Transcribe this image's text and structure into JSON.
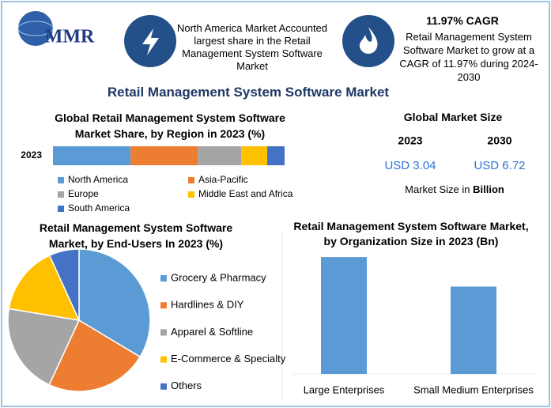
{
  "header": {
    "logo": "MMR",
    "card1": "North America Market Accounted largest share in the Retail Management System Software Market",
    "card2_title": "11.97% CAGR",
    "card2": "Retail Management System Software Market to grow at a CAGR of 11.97% during 2024-2030"
  },
  "title": "Retail Management System Software Market",
  "market_size": {
    "title": "Global Market Size",
    "years": [
      "2023",
      "2030"
    ],
    "values": [
      3.04,
      6.72
    ],
    "value_labels": [
      "USD 3.04",
      "USD 6.72"
    ],
    "note": "Market Size in",
    "unit": "Billion"
  },
  "chart_data": [
    {
      "type": "bar",
      "orientation": "horizontal",
      "stacked": true,
      "title": "Global Retail Management System Software Market Share, by Region in 2023 (%)",
      "categories": [
        "2023"
      ],
      "series": [
        {
          "name": "North America",
          "color": "#5b9bd5",
          "values": [
            33.5
          ]
        },
        {
          "name": "Asia-Pacific",
          "color": "#ed7d31",
          "values": [
            29
          ]
        },
        {
          "name": "Europe",
          "color": "#a5a5a5",
          "values": [
            18.8
          ]
        },
        {
          "name": "Middle East and Africa",
          "color": "#ffc000",
          "values": [
            11.2
          ]
        },
        {
          "name": "South America",
          "color": "#4472c4",
          "values": [
            7.5
          ]
        }
      ],
      "xlim": [
        0,
        100
      ]
    },
    {
      "type": "pie",
      "title": "Retail Management System Software Market, by End-Users In 2023 (%)",
      "categories": [
        "Grocery & Pharmacy",
        "Hardlines & DIY",
        "Apparel & Softline",
        "E-Commerce & Specialty",
        "Others"
      ],
      "values": [
        33.6,
        23.3,
        20.7,
        15.6,
        6.8
      ],
      "colors": [
        "#5b9bd5",
        "#ed7d31",
        "#a5a5a5",
        "#ffc000",
        "#4472c4"
      ]
    },
    {
      "type": "bar",
      "title": "Retail Management System Software Market, by Organization Size in 2023 (Bn)",
      "categories": [
        "Large Enterprises",
        "Small Medium Enterprises"
      ],
      "values": [
        1.74,
        1.3
      ],
      "color": "#5b9bd5",
      "ylim": [
        0,
        2
      ]
    }
  ]
}
